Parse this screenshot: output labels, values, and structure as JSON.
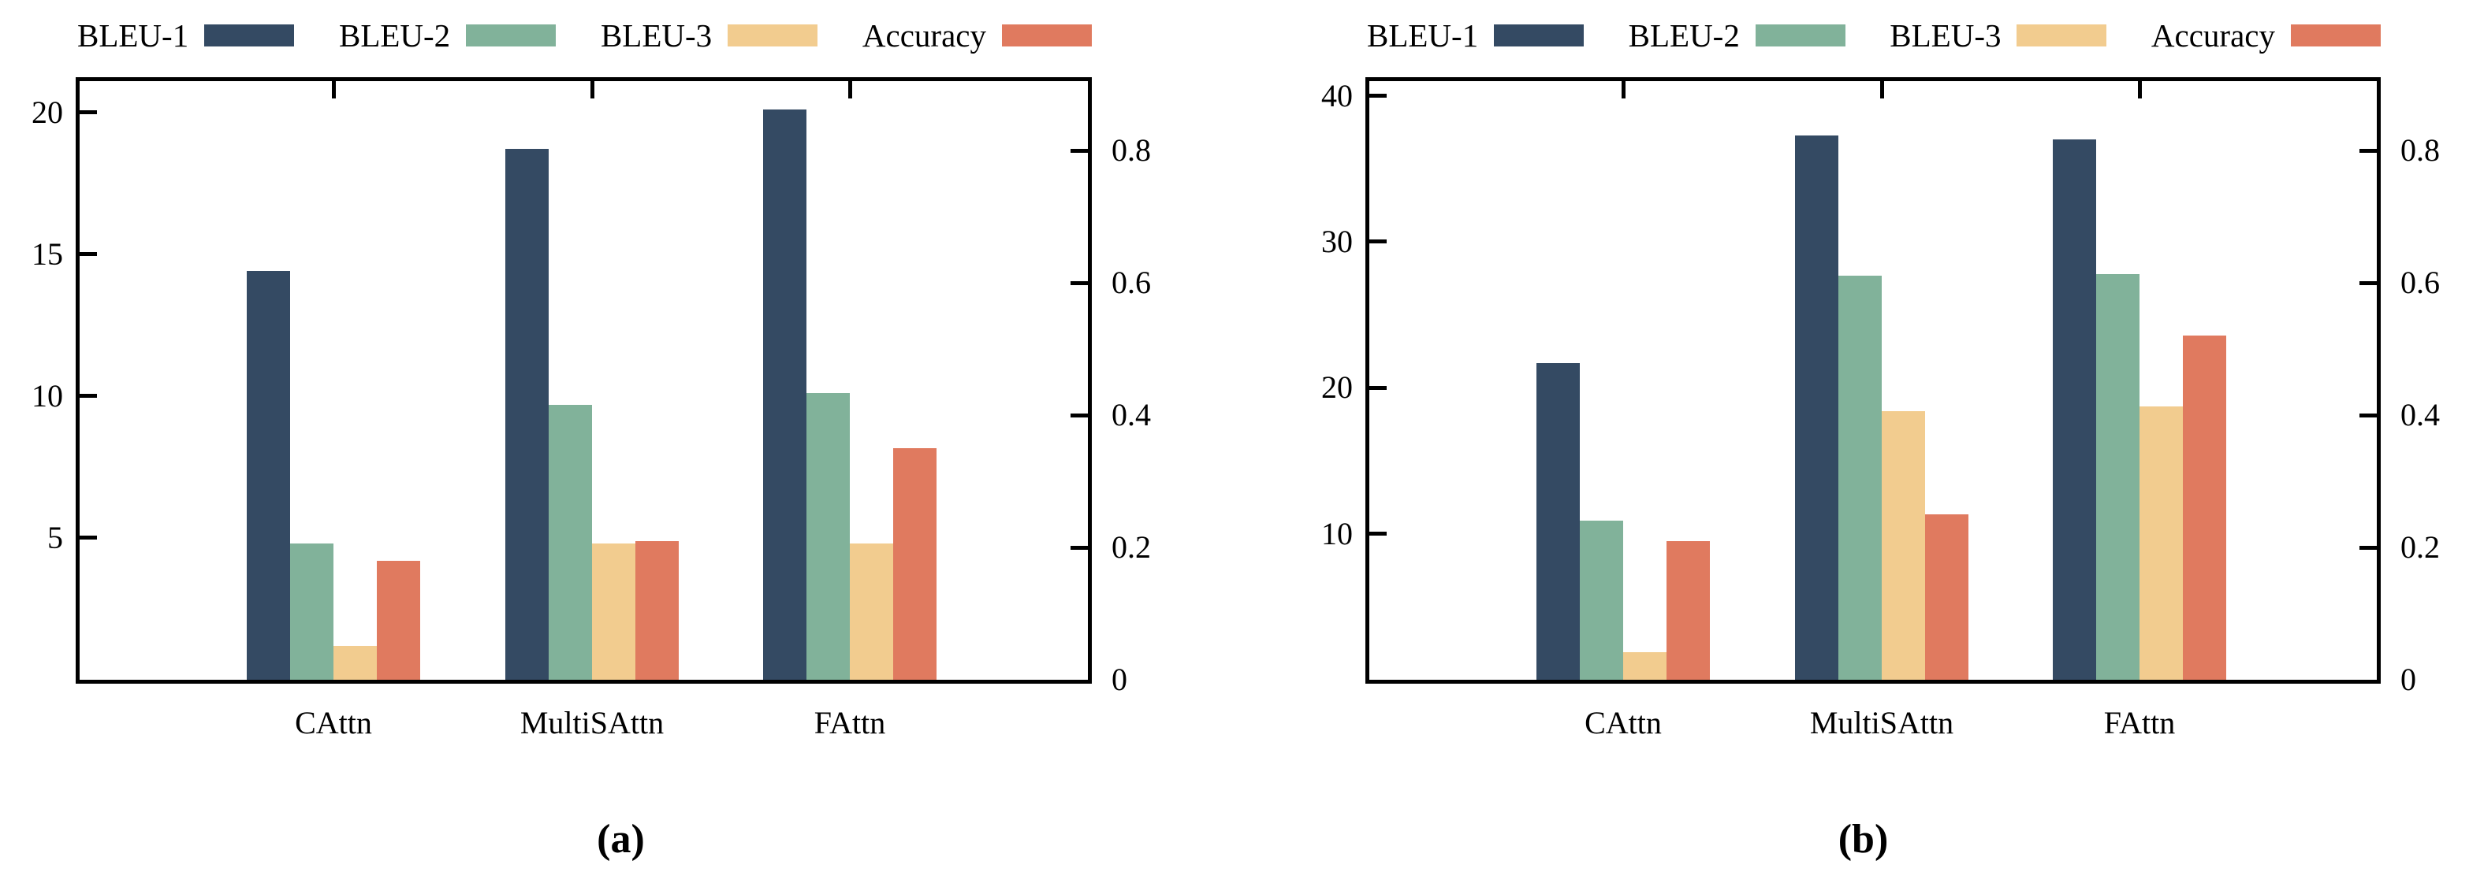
{
  "figure": {
    "background": "#ffffff",
    "captions": [
      "(a)",
      "(b)"
    ]
  },
  "palette": {
    "bleu1_navy": "#344A63",
    "bleu2_green": "#81B29A",
    "bleu3_tan": "#F2CC8F",
    "accuracy_orange": "#E07A5F"
  },
  "chart_data": [
    {
      "id": "a",
      "type": "bar",
      "caption": "(a)",
      "title": "",
      "xlabel": "",
      "ylabel": "",
      "grid": false,
      "legend_position": "top",
      "categories": [
        "CAttn",
        "MultiSAttn",
        "FAttn"
      ],
      "series": [
        {
          "name": "BLEU-1",
          "axis": "left",
          "color": "#344A63",
          "values": [
            14.4,
            18.7,
            20.1
          ]
        },
        {
          "name": "BLEU-2",
          "axis": "left",
          "color": "#81B29A",
          "values": [
            4.8,
            9.7,
            10.1
          ]
        },
        {
          "name": "BLEU-3",
          "axis": "left",
          "color": "#F2CC8F",
          "values": [
            1.2,
            4.8,
            4.8
          ]
        },
        {
          "name": "Accuracy",
          "axis": "right",
          "color": "#E07A5F",
          "values": [
            0.18,
            0.21,
            0.35
          ]
        }
      ],
      "left_axis": {
        "min": 0,
        "max": 21.1,
        "ticks": [
          5,
          10,
          15,
          20
        ],
        "tick_labels": [
          "5",
          "10",
          "15",
          "20"
        ]
      },
      "right_axis": {
        "min": 0,
        "max": 0.905,
        "ticks": [
          0,
          0.2,
          0.4,
          0.6,
          0.8
        ],
        "tick_labels": [
          "0",
          "0.2",
          "0.4",
          "0.6",
          "0.8"
        ]
      }
    },
    {
      "id": "b",
      "type": "bar",
      "caption": "(b)",
      "title": "",
      "xlabel": "",
      "ylabel": "",
      "grid": false,
      "legend_position": "top",
      "categories": [
        "CAttn",
        "MultiSAttn",
        "FAttn"
      ],
      "series": [
        {
          "name": "BLEU-1",
          "axis": "left",
          "color": "#344A63",
          "values": [
            21.7,
            37.3,
            37.0
          ]
        },
        {
          "name": "BLEU-2",
          "axis": "left",
          "color": "#81B29A",
          "values": [
            10.9,
            27.7,
            27.8
          ]
        },
        {
          "name": "BLEU-3",
          "axis": "left",
          "color": "#F2CC8F",
          "values": [
            1.9,
            18.4,
            18.7
          ]
        },
        {
          "name": "Accuracy",
          "axis": "right",
          "color": "#E07A5F",
          "values": [
            0.21,
            0.25,
            0.52
          ]
        }
      ],
      "left_axis": {
        "min": 0,
        "max": 41.0,
        "ticks": [
          10,
          20,
          30,
          40
        ],
        "tick_labels": [
          "10",
          "20",
          "30",
          "40"
        ]
      },
      "right_axis": {
        "min": 0,
        "max": 0.905,
        "ticks": [
          0,
          0.2,
          0.4,
          0.6,
          0.8
        ],
        "tick_labels": [
          "0",
          "0.2",
          "0.4",
          "0.6",
          "0.8"
        ]
      }
    }
  ]
}
